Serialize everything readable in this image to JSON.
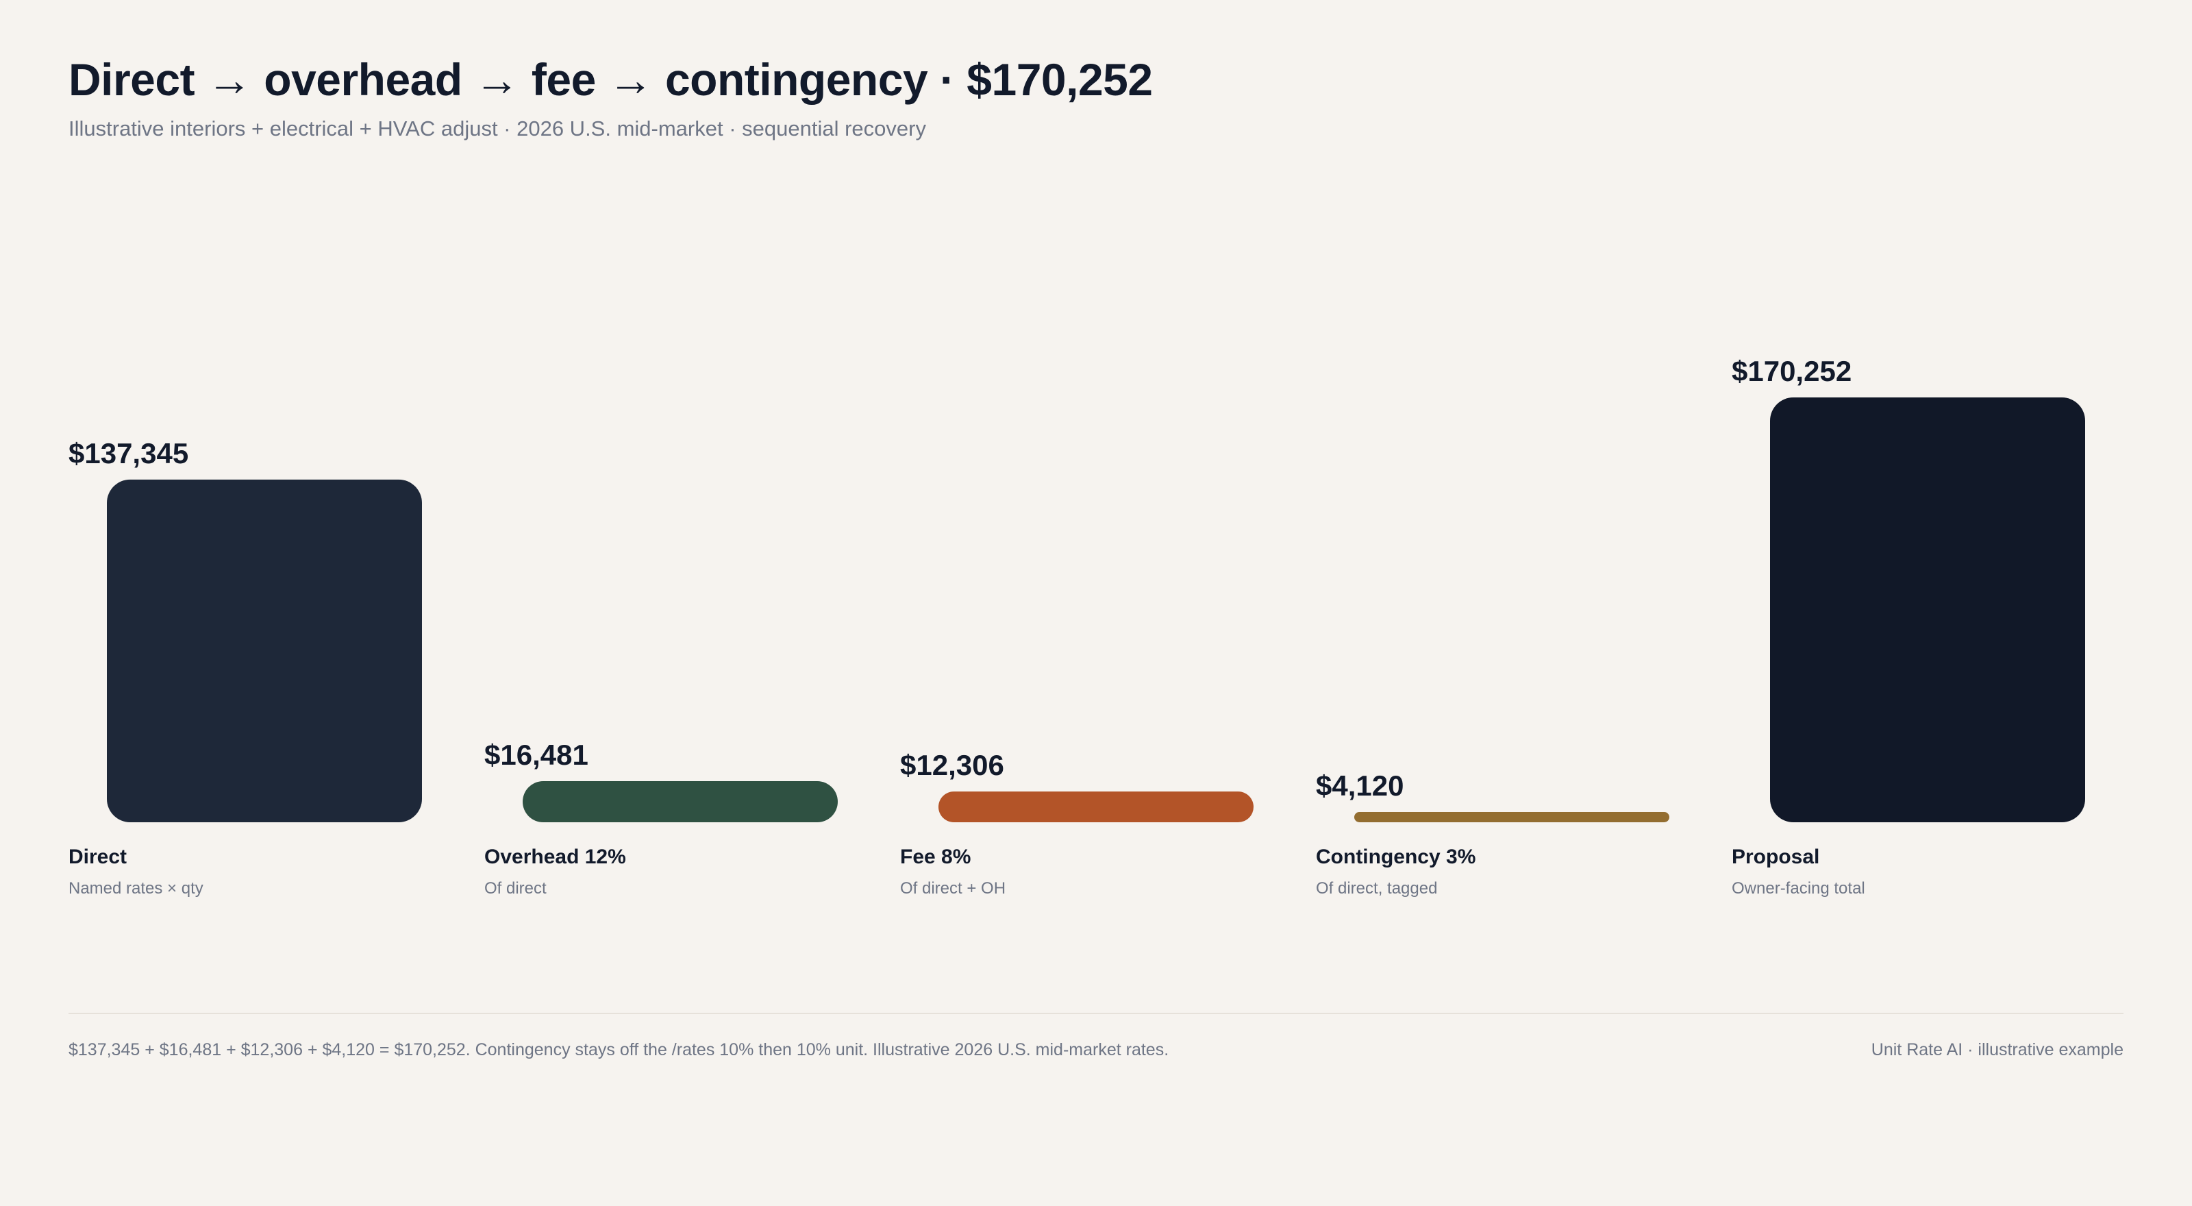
{
  "header": {
    "title": "Direct → overhead → fee → contingency · $170,252",
    "subtitle": "Illustrative interiors + electrical + HVAC adjust · 2026 U.S. mid-market · sequential recovery"
  },
  "chart_data": {
    "type": "bar",
    "title": "Direct → overhead → fee → contingency · $170,252",
    "subtitle": "Illustrative interiors + electrical + HVAC adjust · 2026 U.S. mid-market · sequential recovery",
    "categories": [
      "Direct",
      "Overhead 12%",
      "Fee 8%",
      "Contingency 3%",
      "Proposal"
    ],
    "subcategories": [
      "Named rates × qty",
      "Of direct",
      "Of direct + OH",
      "Of direct, tagged",
      "Owner-facing total"
    ],
    "values": [
      137345,
      16481,
      12306,
      4120,
      170252
    ],
    "value_labels": [
      "$137,345",
      "$16,481",
      "$12,306",
      "$4,120",
      "$170,252"
    ],
    "colors": [
      "#1e2839",
      "#2f5142",
      "#b35428",
      "#936d30",
      "#111828"
    ],
    "xlabel": "",
    "ylabel": "",
    "grid": false,
    "legend": "none"
  },
  "footer": {
    "note": "$137,345 + $16,481 + $12,306 + $4,120 = $170,252. Contingency stays off the /rates 10% then 10% unit. Illustrative 2026 U.S. mid-market rates.",
    "credit": "Unit Rate AI · illustrative example"
  }
}
